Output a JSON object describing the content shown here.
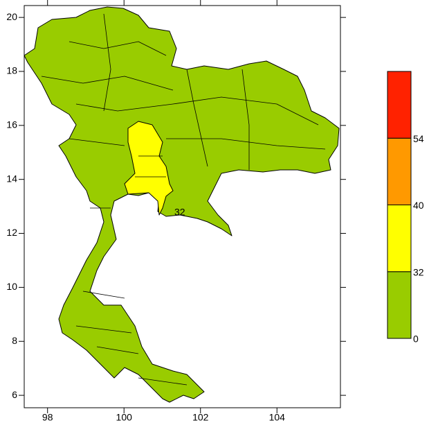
{
  "map": {
    "xlim": [
      97.39,
      105.66
    ],
    "ylim": [
      5.54,
      20.44
    ],
    "xticks": [
      98,
      100,
      102,
      104
    ],
    "yticks": [
      6,
      8,
      10,
      12,
      14,
      16,
      18,
      20
    ],
    "contour_label": 32,
    "colorbar": {
      "levels": [
        0,
        32,
        40,
        54
      ],
      "colors": [
        "#99cc00",
        "#ffff00",
        "#ff9900",
        "#ff2200"
      ]
    }
  }
}
